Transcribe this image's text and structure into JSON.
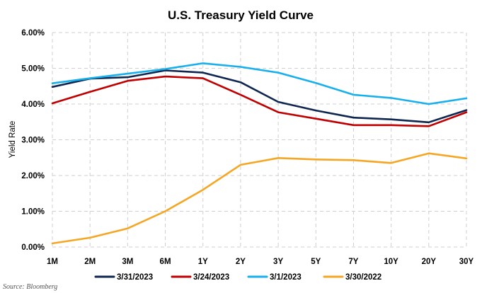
{
  "chart_data": {
    "type": "line",
    "title": "U.S. Treasury Yield Curve",
    "xlabel": "",
    "ylabel": "Yield Rate",
    "categories": [
      "1M",
      "2M",
      "3M",
      "6M",
      "1Y",
      "2Y",
      "3Y",
      "5Y",
      "7Y",
      "10Y",
      "20Y",
      "30Y"
    ],
    "ylim": [
      0,
      6
    ],
    "yticks": [
      0,
      1,
      2,
      3,
      4,
      5,
      6
    ],
    "ytick_labels": [
      "0.00%",
      "1.00%",
      "2.00%",
      "3.00%",
      "4.00%",
      "5.00%",
      "6.00%"
    ],
    "grid": true,
    "legend_position": "bottom",
    "series": [
      {
        "name": "3/31/2023",
        "color": "#0f2650",
        "values": [
          4.48,
          4.71,
          4.75,
          4.94,
          4.88,
          4.61,
          4.06,
          3.82,
          3.62,
          3.57,
          3.49,
          3.83
        ]
      },
      {
        "name": "3/24/2023",
        "color": "#c00000",
        "values": [
          4.02,
          4.34,
          4.65,
          4.77,
          4.72,
          4.26,
          3.77,
          3.59,
          3.41,
          3.41,
          3.38,
          3.77
        ]
      },
      {
        "name": "3/1/2023",
        "color": "#18b0ec",
        "values": [
          4.58,
          4.72,
          4.85,
          4.98,
          5.14,
          5.04,
          4.88,
          4.59,
          4.26,
          4.17,
          4.0,
          4.16
        ]
      },
      {
        "name": "3/30/2022",
        "color": "#f5a623",
        "values": [
          0.1,
          0.26,
          0.52,
          1.0,
          1.6,
          2.3,
          2.49,
          2.45,
          2.43,
          2.35,
          2.62,
          2.48
        ]
      }
    ]
  },
  "source": "Source: Bloomberg"
}
